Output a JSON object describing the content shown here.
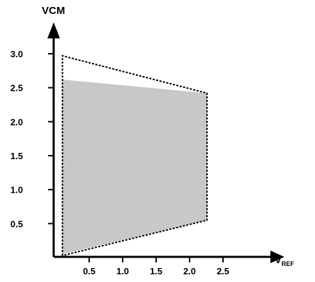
{
  "chart_data": {
    "type": "area",
    "y_axis_title": "VCM",
    "x_axis_title_main": "V",
    "x_axis_title_sub": "REF",
    "x_ticks": [
      0.5,
      1.0,
      1.5,
      2.0,
      2.5
    ],
    "x_tick_labels": [
      "0.5",
      "1.0",
      "1.5",
      "2.0",
      "2.5"
    ],
    "y_ticks": [
      0.5,
      1.0,
      1.5,
      2.0,
      2.5,
      3.0
    ],
    "y_tick_labels": [
      "0.5",
      "1.0",
      "1.5",
      "2.0",
      "2.5",
      "3.0"
    ],
    "xlim": [
      0.0,
      2.8
    ],
    "ylim": [
      0.0,
      3.4
    ],
    "shaded_region": {
      "name": "",
      "color": "#c8c8c8",
      "points": [
        {
          "x": 0.1,
          "y": 0.05
        },
        {
          "x": 0.1,
          "y": 2.62
        },
        {
          "x": 2.26,
          "y": 2.42
        },
        {
          "x": 2.26,
          "y": 0.55
        }
      ]
    },
    "dashed_boundary": {
      "name": "",
      "color": "#000000",
      "points": [
        {
          "x": 0.1,
          "y": 0.03
        },
        {
          "x": 0.1,
          "y": 2.97
        },
        {
          "x": 2.26,
          "y": 2.42
        },
        {
          "x": 2.26,
          "y": 0.55
        }
      ]
    },
    "grid": false,
    "legend": "none"
  }
}
